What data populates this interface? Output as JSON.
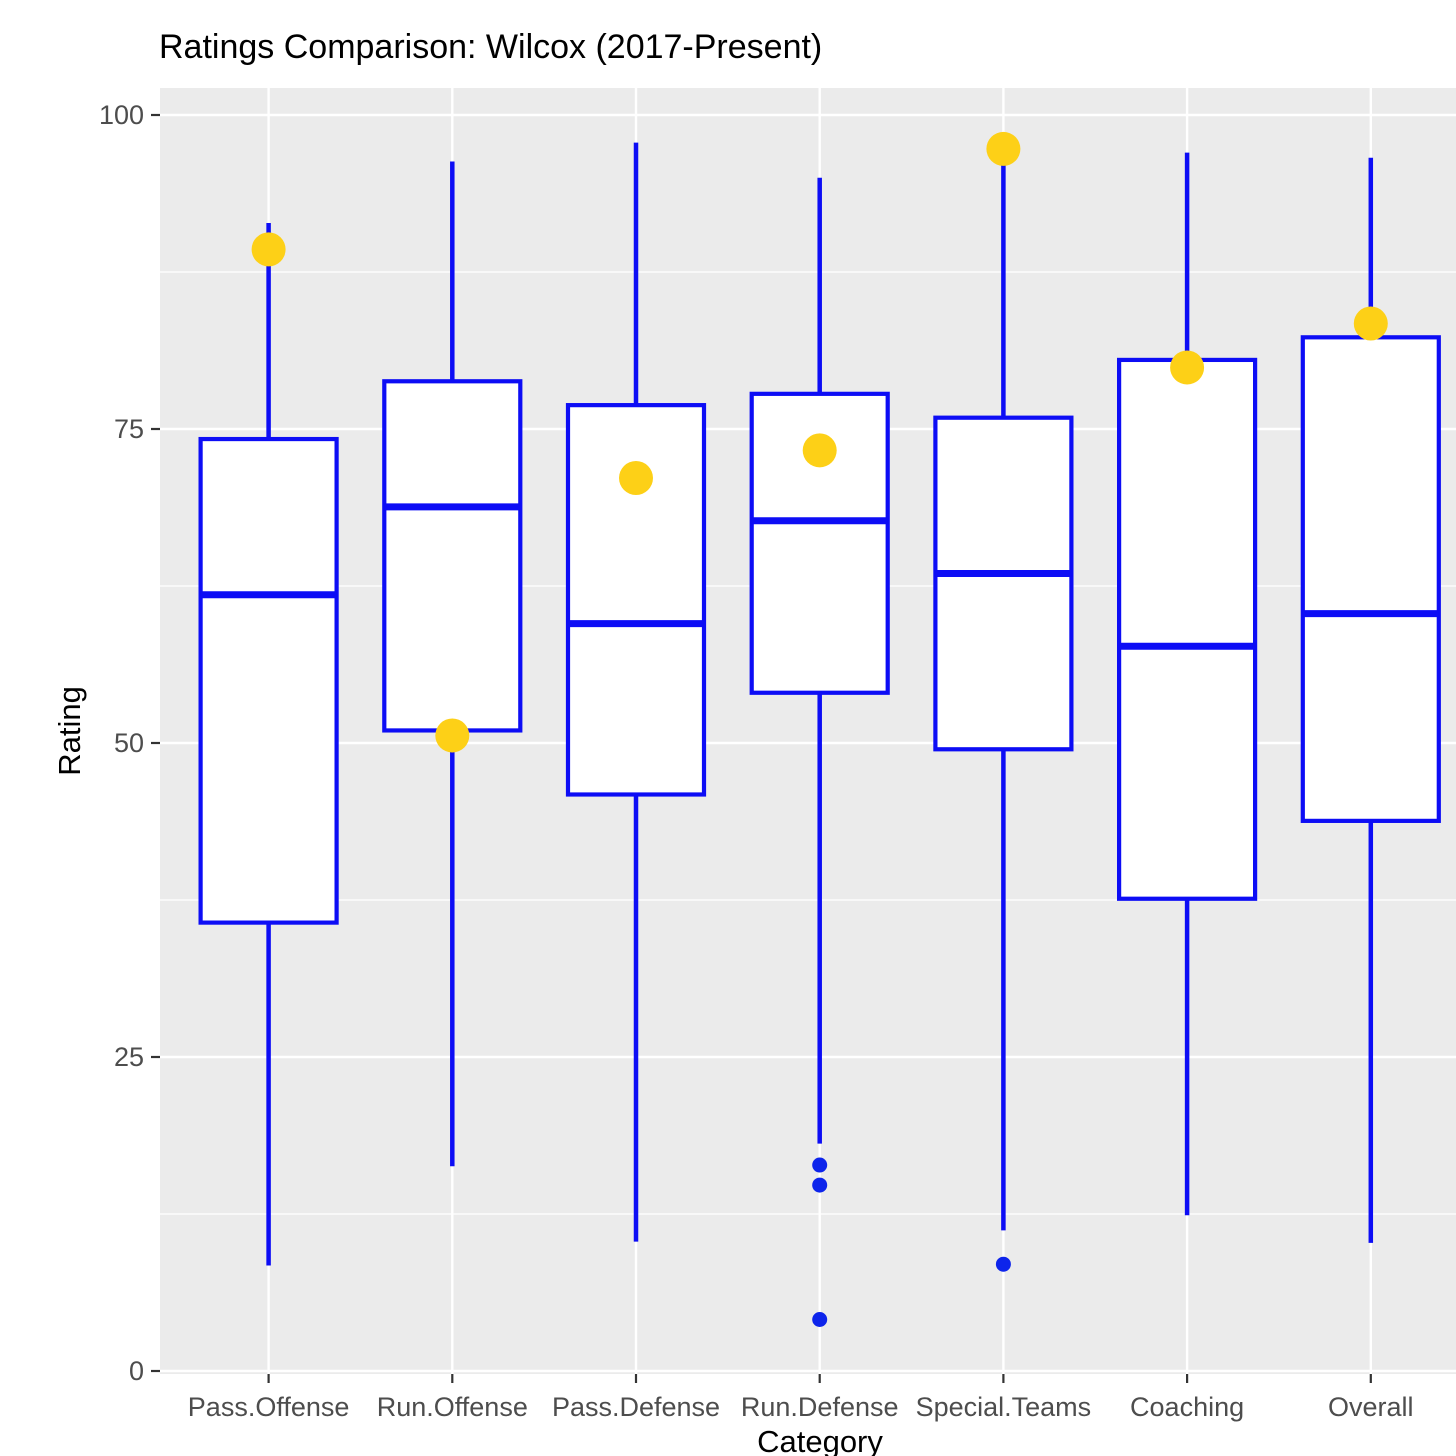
{
  "chart_data": {
    "type": "boxplot",
    "title": "Ratings Comparison: Wilcox (2017-Present)",
    "xlabel": "Category",
    "ylabel": "Rating",
    "ylim": [
      0,
      100
    ],
    "yticks": [
      0,
      25,
      50,
      75,
      100
    ],
    "minor_yticks": [
      12.5,
      37.5,
      62.5,
      87.5
    ],
    "grid": "on",
    "legend": "none",
    "categories": [
      "Pass.Offense",
      "Run.Offense",
      "Pass.Defense",
      "Run.Defense",
      "Special.Teams",
      "Coaching",
      "Overall"
    ],
    "series": [
      {
        "category": "Pass.Offense",
        "whisker_low": 8.4,
        "q1": 35.7,
        "median": 61.8,
        "q3": 74.2,
        "whisker_high": 91.4,
        "outliers": [],
        "highlight_point": 89.3
      },
      {
        "category": "Run.Offense",
        "whisker_low": 16.3,
        "q1": 51.0,
        "median": 68.8,
        "q3": 78.8,
        "whisker_high": 96.3,
        "outliers": [],
        "highlight_point": 50.6
      },
      {
        "category": "Pass.Defense",
        "whisker_low": 10.3,
        "q1": 45.9,
        "median": 59.5,
        "q3": 76.9,
        "whisker_high": 97.8,
        "outliers": [],
        "highlight_point": 71.1
      },
      {
        "category": "Run.Defense",
        "whisker_low": 18.1,
        "q1": 54.0,
        "median": 67.7,
        "q3": 77.8,
        "whisker_high": 95.0,
        "outliers": [
          16.4,
          14.8,
          4.1
        ],
        "highlight_point": 73.3
      },
      {
        "category": "Special.Teams",
        "whisker_low": 11.2,
        "q1": 49.5,
        "median": 63.5,
        "q3": 75.9,
        "whisker_high": 96.0,
        "outliers": [
          8.5
        ],
        "highlight_point": 97.3
      },
      {
        "category": "Coaching",
        "whisker_low": 12.4,
        "q1": 37.6,
        "median": 57.7,
        "q3": 80.5,
        "whisker_high": 97.0,
        "outliers": [],
        "highlight_point": 79.9
      },
      {
        "category": "Overall",
        "whisker_low": 10.2,
        "q1": 43.8,
        "median": 60.3,
        "q3": 82.3,
        "whisker_high": 96.6,
        "outliers": [],
        "highlight_point": 83.4
      }
    ],
    "colors": {
      "box_stroke": "#0d0df5",
      "box_fill": "#ffffff",
      "median": "#0d0df5",
      "outlier_point": "#0d24eb",
      "highlight_point": "#fdd017",
      "panel_bg": "#ebebeb",
      "grid": "#ffffff",
      "tick_mark": "#333333",
      "tick_label": "#4d4d4d"
    }
  }
}
